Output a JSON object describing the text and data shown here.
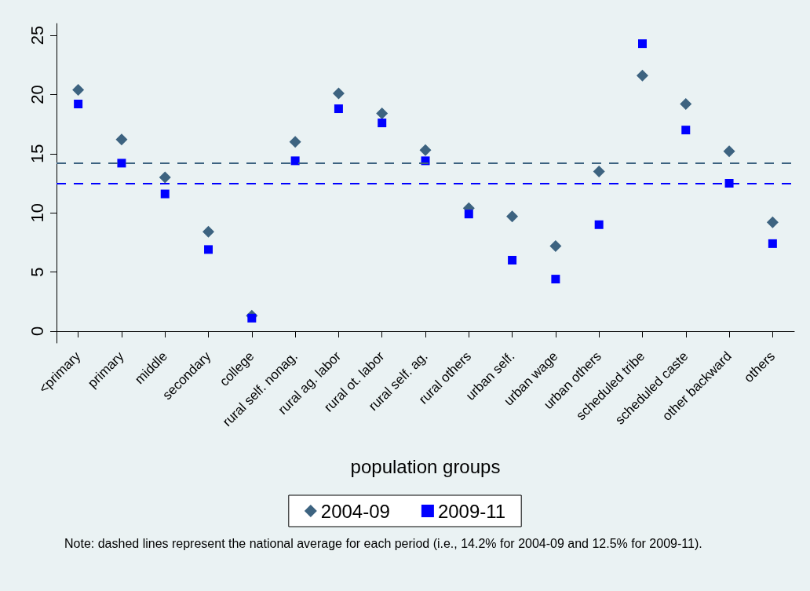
{
  "chart_data": {
    "type": "scatter",
    "xlabel": "population groups",
    "categories": [
      "<primary",
      "primary",
      "middle",
      "secondary",
      "college",
      "rural self. nonag.",
      "rural ag. labor",
      "rural ot. labor",
      "rural self. ag.",
      "rural others",
      "urban self.",
      "urban wage",
      "urban others",
      "scheduled tribe",
      "scheduled caste",
      "other backward",
      "others"
    ],
    "series": [
      {
        "name": "2004-09",
        "color": "#3d6380",
        "marker": "diamond",
        "values": [
          20.4,
          16.2,
          13.0,
          8.4,
          1.3,
          16.0,
          20.1,
          18.4,
          15.3,
          10.4,
          9.7,
          7.2,
          13.5,
          21.6,
          19.2,
          15.2,
          9.2
        ]
      },
      {
        "name": "2009-11",
        "color": "#0000ff",
        "marker": "square",
        "values": [
          19.2,
          14.2,
          11.6,
          6.9,
          1.1,
          14.4,
          18.8,
          17.6,
          14.4,
          9.9,
          6.0,
          4.4,
          9.0,
          24.3,
          17.0,
          12.5,
          7.4
        ]
      }
    ],
    "ylim": [
      -1,
      26
    ],
    "yticks": [
      0,
      5,
      10,
      15,
      20,
      25
    ],
    "grid": false,
    "legend": "bottom",
    "ref_lines": [
      {
        "axis": "y",
        "value": 14.2,
        "color": "#3d6380",
        "line_style": "dashed"
      },
      {
        "axis": "y",
        "value": 12.5,
        "color": "#0000ff",
        "line_style": "dashed"
      }
    ],
    "annotations": [
      "Note: dashed lines represent the national average for each period (i.e., 14.2% for 2004-09 and 12.5% for 2009-11)."
    ]
  }
}
